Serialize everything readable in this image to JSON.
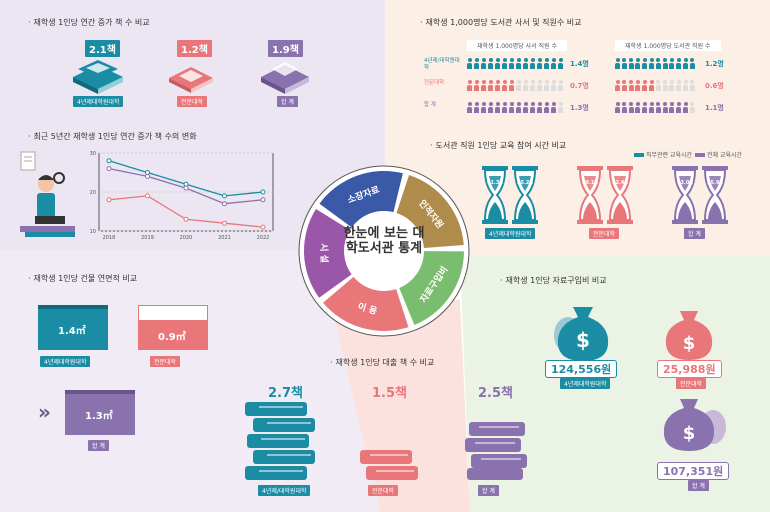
{
  "colors": {
    "teal": "#1a8da4",
    "coral": "#e9777a",
    "purple": "#8a72ae",
    "green": "#7bbd6f",
    "brown": "#b08c4c",
    "blue": "#3a5aa8",
    "violet": "#9a56a8"
  },
  "books_added": {
    "title": "재학생 1인당 연간 증가 책 수 비교",
    "items": [
      {
        "value": "2.1책",
        "label": "4년제대학원대학"
      },
      {
        "value": "1.2책",
        "label": "전문대학"
      },
      {
        "value": "1.9책",
        "label": "합 계"
      }
    ]
  },
  "trend": {
    "title": "최근 5년간 재학생 1인당 연간 증가 책 수의 변화",
    "y_ticks": [
      "30",
      "20",
      "10"
    ],
    "x_ticks": [
      "2018",
      "2019",
      "2020",
      "2021",
      "2022"
    ]
  },
  "chart_data": {
    "type": "line",
    "categories": [
      "2018",
      "2019",
      "2020",
      "2021",
      "2022"
    ],
    "ylim": [
      10,
      30
    ],
    "series": [
      {
        "name": "4년제대학원대학",
        "color": "#1a8da4",
        "values": [
          28,
          25,
          22,
          19,
          20
        ]
      },
      {
        "name": "합 계",
        "color": "#8a72ae",
        "values": [
          26,
          24,
          21,
          17,
          18
        ]
      },
      {
        "name": "전문대학",
        "color": "#e9777a",
        "values": [
          18,
          19,
          13,
          12,
          11
        ]
      }
    ]
  },
  "staff": {
    "title": "재학생 1,000명당 도서관 사서 및 직원수 비교",
    "col1": "재학생 1,000명당 사서 직원 수",
    "col2": "재학생 1,000명당 도서관 직원 수",
    "rows": [
      {
        "label": "4년제/대학원대학",
        "v1": "1.4명",
        "v2": "1.2명",
        "c": "#1a8da4"
      },
      {
        "label": "전문대학",
        "v1": "0.7명",
        "v2": "0.6명",
        "c": "#e9777a"
      },
      {
        "label": "합 계",
        "v1": "1.3명",
        "v2": "1.1명",
        "c": "#8a72ae"
      }
    ]
  },
  "training": {
    "title": "도서관 직원 1인당 교육 참여 시간 비교",
    "legend1": "직무관련 교육시간",
    "legend2": "전체 교육시간",
    "groups": [
      {
        "a": "41.3h",
        "b": "55.2h",
        "label": "4년제대학원대학",
        "c": "#1a8da4"
      },
      {
        "a": "59.1h",
        "b": "62.4h",
        "label": "전문대학",
        "c": "#e9777a"
      },
      {
        "a": "43.0h",
        "b": "55.9h",
        "label": "합 계",
        "c": "#8a72ae"
      }
    ]
  },
  "center": {
    "title": "한눈에 보는 대학도서관 통계",
    "segments": [
      "소장자료",
      "인적자원",
      "자료구입비",
      "이 용",
      "시 설"
    ]
  },
  "building": {
    "title": "재학생 1인당 건물 연면적 비교",
    "items": [
      {
        "value": "1.4㎡",
        "label": "4년제대학원대학"
      },
      {
        "value": "0.9㎡",
        "label": "전문대학"
      },
      {
        "value": "1.3㎡",
        "label": "합 계"
      }
    ]
  },
  "loans": {
    "title": "재학생 1인당 대출 책 수 비교",
    "items": [
      {
        "value": "2.7책",
        "label": "4년제/대학원대학"
      },
      {
        "value": "1.5책",
        "label": "전문대학"
      },
      {
        "value": "2.5책",
        "label": "합 계"
      }
    ]
  },
  "purchase": {
    "title": "재학생 1인당 자료구입비 비교",
    "items": [
      {
        "value": "124,556원",
        "label": "4년제대학원대학"
      },
      {
        "value": "25,988원",
        "label": "전문대학"
      },
      {
        "value": "107,351원",
        "label": "합 계"
      }
    ]
  }
}
